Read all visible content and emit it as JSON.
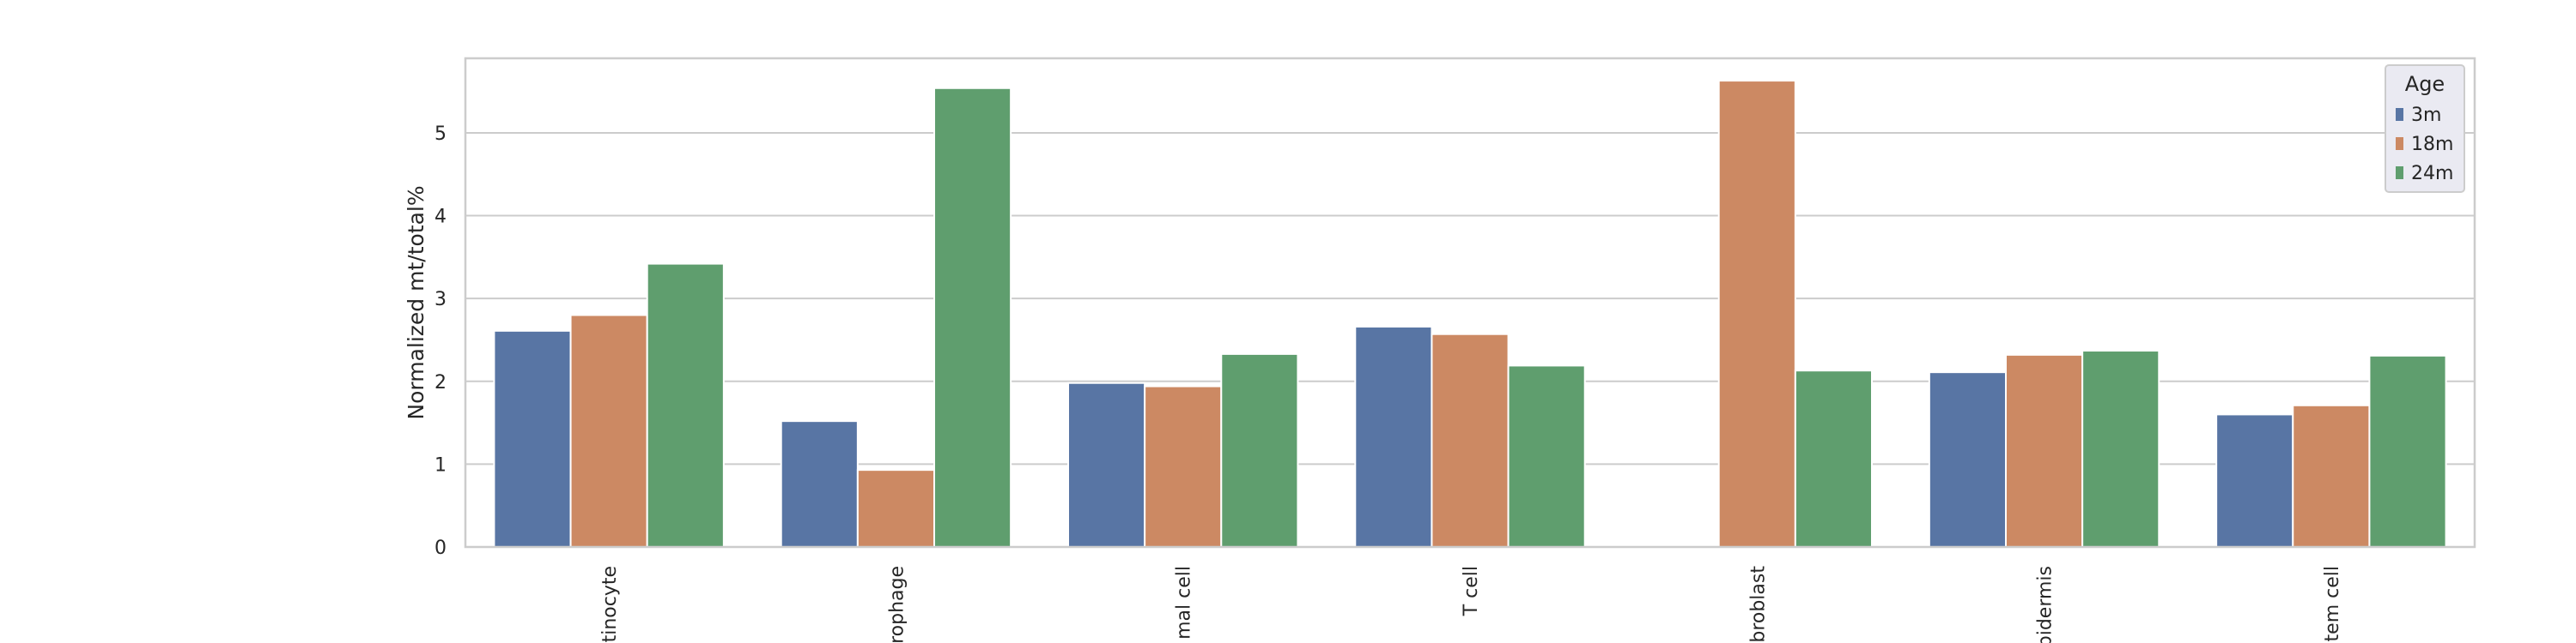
{
  "chart_data": {
    "type": "bar",
    "categories": [
      "tinocyte",
      "rophage",
      "mal cell",
      "T cell",
      "broblast",
      "pidermis",
      "tem cell"
    ],
    "series": [
      {
        "name": "3m",
        "values": [
          2.61,
          1.52,
          1.98,
          2.66,
          0,
          2.11,
          1.6
        ],
        "color": "#5875a4"
      },
      {
        "name": "18m",
        "values": [
          2.8,
          0.93,
          1.94,
          2.57,
          5.63,
          2.32,
          1.71
        ],
        "color": "#cc8963"
      },
      {
        "name": "24m",
        "values": [
          3.42,
          5.54,
          2.33,
          2.19,
          2.13,
          2.37,
          2.31
        ],
        "color": "#5f9e6e"
      }
    ],
    "ylabel": "Normalized mt/total%",
    "xlabel": "",
    "ylim": [
      0,
      5.9
    ],
    "yticks": [
      "0",
      "1",
      "2",
      "3",
      "4",
      "5"
    ],
    "grid": true,
    "legend": {
      "title": "Age",
      "placement": "top-right"
    }
  }
}
